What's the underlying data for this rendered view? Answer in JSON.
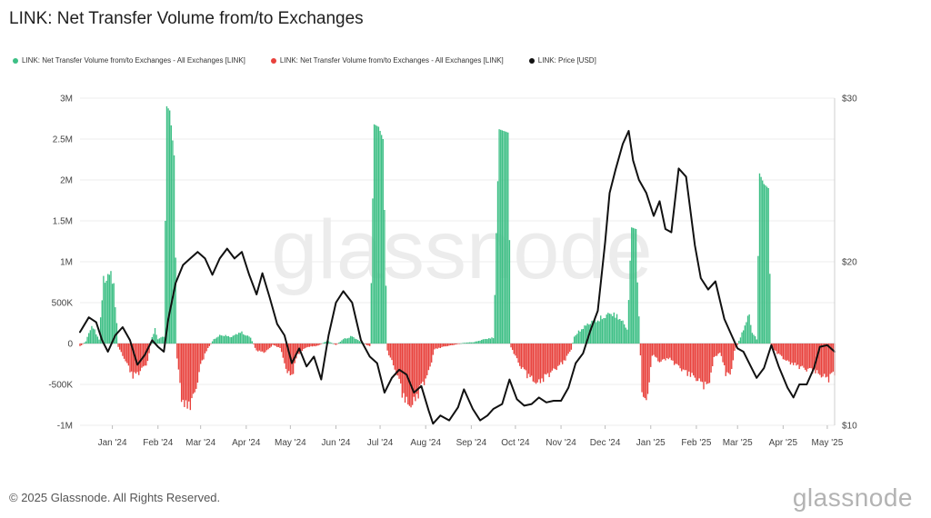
{
  "title": "LINK: Net Transfer Volume from/to Exchanges",
  "legend": {
    "items": [
      {
        "label": "LINK: Net Transfer Volume from/to Exchanges - All Exchanges [LINK]",
        "color": "#3dbf85"
      },
      {
        "label": "LINK: Net Transfer Volume from/to Exchanges - All Exchanges [LINK]",
        "color": "#e8413c"
      },
      {
        "label": "LINK: Price [USD]",
        "color": "#111111"
      }
    ]
  },
  "watermark": "glassnode",
  "footer": {
    "copyright": "© 2025 Glassnode. All Rights Reserved.",
    "brand": "glassnode"
  },
  "chart_data": {
    "type": "bar+line",
    "title": "LINK: Net Transfer Volume from/to Exchanges",
    "x_ticks": [
      "Jan '24",
      "Feb '24",
      "Mar '24",
      "Apr '24",
      "May '24",
      "Jun '24",
      "Jul '24",
      "Aug '24",
      "Sep '24",
      "Oct '24",
      "Nov '24",
      "Dec '24",
      "Jan '25",
      "Feb '25",
      "Mar '25",
      "Apr '25",
      "May '25"
    ],
    "x_range": [
      "2023-12-10",
      "2025-05-06"
    ],
    "y_left": {
      "ticks": [
        "3M",
        "2.5M",
        "2M",
        "1.5M",
        "1M",
        "500K",
        "0",
        "-500K",
        "-1M"
      ],
      "range": [
        -1000000,
        3000000
      ]
    },
    "y_right": {
      "ticks": [
        "$30",
        "$20",
        "$10"
      ],
      "range": [
        10,
        30
      ]
    },
    "colors": {
      "inflow": "#3dbf85",
      "outflow": "#e8413c",
      "price": "#111111"
    },
    "net_transfer_volume_keypoints": [
      [
        "2023-12-10",
        -40000
      ],
      [
        "2023-12-14",
        30000
      ],
      [
        "2023-12-18",
        250000
      ],
      [
        "2023-12-23",
        60000
      ],
      [
        "2023-12-26",
        880000
      ],
      [
        "2023-12-31",
        940000
      ],
      [
        "2024-01-02",
        850000
      ],
      [
        "2024-01-05",
        -50000
      ],
      [
        "2024-01-09",
        -200000
      ],
      [
        "2024-01-15",
        -450000
      ],
      [
        "2024-01-20",
        -380000
      ],
      [
        "2024-01-25",
        -250000
      ],
      [
        "2024-01-28",
        80000
      ],
      [
        "2024-01-30",
        200000
      ],
      [
        "2024-02-01",
        60000
      ],
      [
        "2024-02-05",
        100000
      ],
      [
        "2024-02-07",
        2900000
      ],
      [
        "2024-02-09",
        2850000
      ],
      [
        "2024-02-12",
        2300000
      ],
      [
        "2024-02-14",
        -200000
      ],
      [
        "2024-02-17",
        -750000
      ],
      [
        "2024-02-21",
        -900000
      ],
      [
        "2024-02-26",
        -700000
      ],
      [
        "2024-03-01",
        -300000
      ],
      [
        "2024-03-05",
        -100000
      ],
      [
        "2024-03-10",
        60000
      ],
      [
        "2024-03-15",
        120000
      ],
      [
        "2024-03-22",
        90000
      ],
      [
        "2024-03-28",
        160000
      ],
      [
        "2024-04-04",
        80000
      ],
      [
        "2024-04-08",
        -100000
      ],
      [
        "2024-04-14",
        -120000
      ],
      [
        "2024-04-19",
        -20000
      ],
      [
        "2024-04-24",
        -60000
      ],
      [
        "2024-04-29",
        -400000
      ],
      [
        "2024-05-02",
        -450000
      ],
      [
        "2024-05-06",
        -150000
      ],
      [
        "2024-05-12",
        -50000
      ],
      [
        "2024-05-20",
        -30000
      ],
      [
        "2024-05-26",
        40000
      ],
      [
        "2024-06-01",
        -20000
      ],
      [
        "2024-06-06",
        60000
      ],
      [
        "2024-06-12",
        100000
      ],
      [
        "2024-06-18",
        20000
      ],
      [
        "2024-06-24",
        -40000
      ],
      [
        "2024-06-27",
        2680000
      ],
      [
        "2024-06-30",
        2650000
      ],
      [
        "2024-07-03",
        2500000
      ],
      [
        "2024-07-06",
        -100000
      ],
      [
        "2024-07-12",
        -400000
      ],
      [
        "2024-07-18",
        -800000
      ],
      [
        "2024-07-23",
        -850000
      ],
      [
        "2024-07-29",
        -600000
      ],
      [
        "2024-08-03",
        -400000
      ],
      [
        "2024-08-07",
        -80000
      ],
      [
        "2024-08-14",
        -40000
      ],
      [
        "2024-08-20",
        -20000
      ],
      [
        "2024-08-27",
        10000
      ],
      [
        "2024-09-03",
        20000
      ],
      [
        "2024-09-10",
        60000
      ],
      [
        "2024-09-16",
        80000
      ],
      [
        "2024-09-20",
        2620000
      ],
      [
        "2024-09-23",
        2600000
      ],
      [
        "2024-09-26",
        2580000
      ],
      [
        "2024-09-28",
        -50000
      ],
      [
        "2024-10-04",
        -300000
      ],
      [
        "2024-10-10",
        -450000
      ],
      [
        "2024-10-16",
        -550000
      ],
      [
        "2024-10-22",
        -450000
      ],
      [
        "2024-10-28",
        -350000
      ],
      [
        "2024-11-03",
        -250000
      ],
      [
        "2024-11-08",
        -80000
      ],
      [
        "2024-11-10",
        100000
      ],
      [
        "2024-11-16",
        220000
      ],
      [
        "2024-11-22",
        300000
      ],
      [
        "2024-11-29",
        350000
      ],
      [
        "2024-12-05",
        420000
      ],
      [
        "2024-12-11",
        350000
      ],
      [
        "2024-12-16",
        200000
      ],
      [
        "2024-12-19",
        1420000
      ],
      [
        "2024-12-22",
        1400000
      ],
      [
        "2024-12-26",
        -700000
      ],
      [
        "2024-12-30",
        -750000
      ],
      [
        "2025-01-02",
        -150000
      ],
      [
        "2025-01-07",
        -250000
      ],
      [
        "2025-01-13",
        -200000
      ],
      [
        "2025-01-19",
        -300000
      ],
      [
        "2025-01-25",
        -400000
      ],
      [
        "2025-01-30",
        -450000
      ],
      [
        "2025-02-05",
        -550000
      ],
      [
        "2025-02-09",
        -600000
      ],
      [
        "2025-02-13",
        -200000
      ],
      [
        "2025-02-17",
        -120000
      ],
      [
        "2025-02-21",
        -400000
      ],
      [
        "2025-02-24",
        -450000
      ],
      [
        "2025-02-27",
        -100000
      ],
      [
        "2025-03-01",
        -20000
      ],
      [
        "2025-03-05",
        200000
      ],
      [
        "2025-03-09",
        400000
      ],
      [
        "2025-03-11",
        150000
      ],
      [
        "2025-03-14",
        60000
      ],
      [
        "2025-03-16",
        2080000
      ],
      [
        "2025-03-19",
        1950000
      ],
      [
        "2025-03-22",
        1900000
      ],
      [
        "2025-03-24",
        -50000
      ],
      [
        "2025-03-29",
        -150000
      ],
      [
        "2025-04-04",
        -250000
      ],
      [
        "2025-04-10",
        -300000
      ],
      [
        "2025-04-16",
        -350000
      ],
      [
        "2025-04-22",
        -380000
      ],
      [
        "2025-04-28",
        -450000
      ],
      [
        "2025-05-02",
        -480000
      ],
      [
        "2025-05-06",
        -400000
      ]
    ],
    "price_usd_keypoints": [
      [
        "2023-12-10",
        15.7
      ],
      [
        "2023-12-16",
        16.6
      ],
      [
        "2023-12-21",
        16.3
      ],
      [
        "2023-12-25",
        15.2
      ],
      [
        "2023-12-29",
        14.5
      ],
      [
        "2024-01-03",
        15.5
      ],
      [
        "2024-01-08",
        16.0
      ],
      [
        "2024-01-13",
        15.2
      ],
      [
        "2024-01-18",
        13.7
      ],
      [
        "2024-01-23",
        14.3
      ],
      [
        "2024-01-28",
        15.2
      ],
      [
        "2024-02-01",
        14.8
      ],
      [
        "2024-02-05",
        14.5
      ],
      [
        "2024-02-08",
        16.5
      ],
      [
        "2024-02-13",
        18.7
      ],
      [
        "2024-02-18",
        19.8
      ],
      [
        "2024-02-23",
        20.2
      ],
      [
        "2024-02-28",
        20.6
      ],
      [
        "2024-03-04",
        20.2
      ],
      [
        "2024-03-09",
        19.2
      ],
      [
        "2024-03-14",
        20.2
      ],
      [
        "2024-03-19",
        20.8
      ],
      [
        "2024-03-24",
        20.2
      ],
      [
        "2024-03-29",
        20.6
      ],
      [
        "2024-04-03",
        19.2
      ],
      [
        "2024-04-08",
        18.0
      ],
      [
        "2024-04-12",
        19.3
      ],
      [
        "2024-04-17",
        17.8
      ],
      [
        "2024-04-22",
        16.2
      ],
      [
        "2024-04-27",
        15.5
      ],
      [
        "2024-05-02",
        13.8
      ],
      [
        "2024-05-07",
        14.7
      ],
      [
        "2024-05-12",
        13.6
      ],
      [
        "2024-05-17",
        14.2
      ],
      [
        "2024-05-22",
        12.8
      ],
      [
        "2024-05-27",
        15.5
      ],
      [
        "2024-06-01",
        17.5
      ],
      [
        "2024-06-06",
        18.2
      ],
      [
        "2024-06-12",
        17.5
      ],
      [
        "2024-06-18",
        15.2
      ],
      [
        "2024-06-24",
        14.2
      ],
      [
        "2024-06-29",
        13.8
      ],
      [
        "2024-07-04",
        12.0
      ],
      [
        "2024-07-09",
        12.9
      ],
      [
        "2024-07-14",
        13.4
      ],
      [
        "2024-07-19",
        13.1
      ],
      [
        "2024-07-24",
        12.0
      ],
      [
        "2024-07-29",
        12.4
      ],
      [
        "2024-08-03",
        10.9
      ],
      [
        "2024-08-06",
        10.1
      ],
      [
        "2024-08-11",
        10.6
      ],
      [
        "2024-08-17",
        10.3
      ],
      [
        "2024-08-23",
        11.1
      ],
      [
        "2024-08-27",
        12.2
      ],
      [
        "2024-09-02",
        11.0
      ],
      [
        "2024-09-07",
        10.3
      ],
      [
        "2024-09-12",
        10.6
      ],
      [
        "2024-09-16",
        11.0
      ],
      [
        "2024-09-22",
        11.3
      ],
      [
        "2024-09-27",
        12.8
      ],
      [
        "2024-10-02",
        11.6
      ],
      [
        "2024-10-07",
        11.2
      ],
      [
        "2024-10-12",
        11.3
      ],
      [
        "2024-10-17",
        11.7
      ],
      [
        "2024-10-22",
        11.4
      ],
      [
        "2024-10-27",
        11.5
      ],
      [
        "2024-11-01",
        11.5
      ],
      [
        "2024-11-06",
        12.3
      ],
      [
        "2024-11-11",
        13.8
      ],
      [
        "2024-11-16",
        14.4
      ],
      [
        "2024-11-21",
        15.8
      ],
      [
        "2024-11-26",
        17.0
      ],
      [
        "2024-12-01",
        21.2
      ],
      [
        "2024-12-04",
        24.2
      ],
      [
        "2024-12-08",
        25.6
      ],
      [
        "2024-12-13",
        27.2
      ],
      [
        "2024-12-17",
        28.0
      ],
      [
        "2024-12-20",
        26.2
      ],
      [
        "2024-12-24",
        25.0
      ],
      [
        "2024-12-29",
        24.2
      ],
      [
        "2025-01-03",
        22.8
      ],
      [
        "2025-01-07",
        23.7
      ],
      [
        "2025-01-11",
        22.0
      ],
      [
        "2025-01-15",
        21.8
      ],
      [
        "2025-01-20",
        25.7
      ],
      [
        "2025-01-25",
        25.2
      ],
      [
        "2025-01-31",
        21.0
      ],
      [
        "2025-02-04",
        19.0
      ],
      [
        "2025-02-09",
        18.3
      ],
      [
        "2025-02-14",
        18.8
      ],
      [
        "2025-02-20",
        16.5
      ],
      [
        "2025-02-25",
        15.5
      ],
      [
        "2025-03-01",
        14.7
      ],
      [
        "2025-03-05",
        14.5
      ],
      [
        "2025-03-10",
        13.6
      ],
      [
        "2025-03-14",
        12.9
      ],
      [
        "2025-03-19",
        13.5
      ],
      [
        "2025-03-24",
        14.9
      ],
      [
        "2025-03-29",
        13.6
      ],
      [
        "2025-04-04",
        12.3
      ],
      [
        "2025-04-08",
        11.7
      ],
      [
        "2025-04-12",
        12.5
      ],
      [
        "2025-04-17",
        12.5
      ],
      [
        "2025-04-22",
        13.5
      ],
      [
        "2025-04-26",
        14.8
      ],
      [
        "2025-05-01",
        14.9
      ],
      [
        "2025-05-06",
        14.5
      ]
    ]
  }
}
